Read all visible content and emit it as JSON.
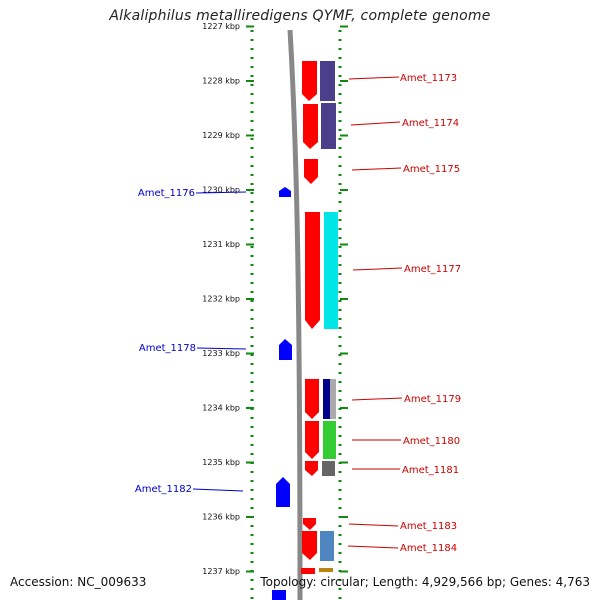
{
  "title": "Alkaliphilus metalliredigens QYMF, complete genome",
  "footer": {
    "accession": "Accession: NC_009633",
    "summary": "Topology: circular; Length: 4,929,566 bp; Genes: 4,763"
  },
  "axis": {
    "tick_labels": [
      "1227 kbp",
      "1228 kbp",
      "1229 kbp",
      "1230 kbp",
      "1231 kbp",
      "1232 kbp",
      "1233 kbp",
      "1234 kbp",
      "1235 kbp",
      "1236 kbp",
      "1237 kbp"
    ]
  },
  "colors": {
    "forward_label": "#cc0000",
    "reverse_label": "#0000cc",
    "gene_red": "#ff0000",
    "gene_blue": "#0000ff",
    "dots": "#118811",
    "backbone": "#999999"
  },
  "genes_forward": [
    {
      "name": "Amet_1173"
    },
    {
      "name": "Amet_1174"
    },
    {
      "name": "Amet_1175"
    },
    {
      "name": "Amet_1177"
    },
    {
      "name": "Amet_1179"
    },
    {
      "name": "Amet_1180"
    },
    {
      "name": "Amet_1181"
    },
    {
      "name": "Amet_1183"
    },
    {
      "name": "Amet_1184"
    }
  ],
  "genes_reverse": [
    {
      "name": "Amet_1176"
    },
    {
      "name": "Amet_1178"
    },
    {
      "name": "Amet_1182"
    }
  ]
}
